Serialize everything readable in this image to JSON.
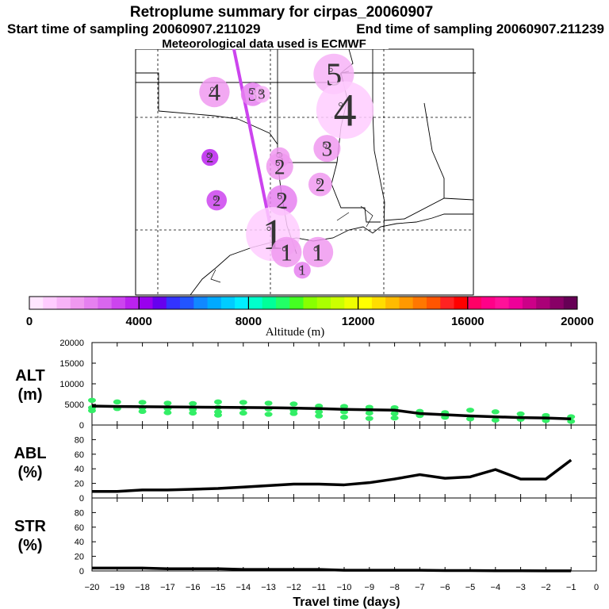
{
  "title_block": {
    "title": "Retroplume summary for cirpas_20060907",
    "start_label": "Start time of sampling 20060907.211029",
    "end_label": "End time of sampling 20060907.211239",
    "met_label": "Meteorological data used is ECMWF"
  },
  "colorbar": {
    "label": "Altitude (m)",
    "min": 0,
    "max": 20000,
    "tick_labels": [
      "0",
      "4000",
      "8000",
      "12000",
      "16000",
      "20000"
    ],
    "colors": [
      "#ffe6ff",
      "#ffccff",
      "#f7b3f7",
      "#f099f0",
      "#e680f0",
      "#d966ee",
      "#cc44ee",
      "#bb22ee",
      "#9900ee",
      "#6600ee",
      "#3333ff",
      "#2255ff",
      "#1188ff",
      "#00aaff",
      "#00ccff",
      "#00eeff",
      "#00ffcc",
      "#00ff99",
      "#22ff66",
      "#44ff22",
      "#88ff00",
      "#aaff00",
      "#ccff00",
      "#eeff00",
      "#ffff00",
      "#ffdd00",
      "#ffbb00",
      "#ff9900",
      "#ff7700",
      "#ff5500",
      "#ff2222",
      "#ff0000",
      "#ff0066",
      "#ff0088",
      "#ff1199",
      "#ee0099",
      "#cc0088",
      "#aa0077",
      "#880066",
      "#660055"
    ]
  },
  "map": {
    "trajectory_color": "#cc44ee",
    "plume_points": [
      {
        "day": "5",
        "alt": 1100,
        "lat": 36.9,
        "lon": -92.2,
        "r": 1.2
      },
      {
        "day": "4",
        "alt": 800,
        "lat": 35.3,
        "lon": -91.7,
        "r": 1.7
      },
      {
        "day": "4",
        "alt": 1900,
        "lat": 36.1,
        "lon": -97.5,
        "r": 0.9
      },
      {
        "day": "3",
        "alt": 2300,
        "lat": 36.0,
        "lon": -95.8,
        "r": 0.7
      },
      {
        "day": "3",
        "alt": 1400,
        "lat": 36.0,
        "lon": -95.4,
        "r": 0.5
      },
      {
        "day": "3",
        "alt": 1500,
        "lat": 33.6,
        "lon": -92.5,
        "r": 0.8
      },
      {
        "day": "3",
        "alt": 1900,
        "lat": 33.2,
        "lon": -94.6,
        "r": 0.6
      },
      {
        "day": "2",
        "alt": 3600,
        "lat": 33.2,
        "lon": -97.7,
        "r": 0.5
      },
      {
        "day": "2",
        "alt": 1900,
        "lat": 32.8,
        "lon": -94.6,
        "r": 0.8
      },
      {
        "day": "2",
        "alt": 1500,
        "lat": 32.0,
        "lon": -92.8,
        "r": 0.7
      },
      {
        "day": "2",
        "alt": 3400,
        "lat": 31.3,
        "lon": -97.4,
        "r": 0.6
      },
      {
        "day": "2",
        "alt": 2100,
        "lat": 31.3,
        "lon": -94.5,
        "r": 0.9
      },
      {
        "day": "1",
        "alt": 600,
        "lat": 29.8,
        "lon": -94.9,
        "r": 1.6
      },
      {
        "day": "1",
        "alt": 1500,
        "lat": 29.0,
        "lon": -94.3,
        "r": 0.9
      },
      {
        "day": "1",
        "alt": 1900,
        "lat": 29.0,
        "lon": -92.9,
        "r": 0.9
      },
      {
        "day": "1",
        "alt": 2400,
        "lat": 28.2,
        "lon": -93.6,
        "r": 0.5
      }
    ]
  },
  "chart_data": [
    {
      "type": "line",
      "name": "ALT",
      "ylabel": "ALT",
      "yunits": "(m)",
      "ylim": [
        0,
        20000
      ],
      "yticks": [
        "0",
        "5000",
        "10000",
        "15000",
        "20000"
      ],
      "xlim": [
        -20,
        0
      ],
      "x": [
        -20,
        -19,
        -18,
        -17,
        -16,
        -15,
        -14,
        -13,
        -12,
        -11,
        -10,
        -9,
        -8,
        -7,
        -6,
        -5,
        -4,
        -3,
        -2,
        -1
      ],
      "values": [
        4600,
        4500,
        4450,
        4400,
        4350,
        4300,
        4250,
        4200,
        4100,
        4000,
        3800,
        3700,
        3600,
        2800,
        2500,
        2200,
        2000,
        1800,
        1700,
        1500
      ],
      "scatter_color": "#33ee66",
      "scatter_x": [
        -20,
        -20,
        -20,
        -19,
        -19,
        -18,
        -18,
        -18,
        -17,
        -17,
        -17,
        -16,
        -16,
        -16,
        -15,
        -15,
        -15,
        -15,
        -14,
        -14,
        -14,
        -13,
        -13,
        -13,
        -12,
        -12,
        -12,
        -11,
        -11,
        -11,
        -10,
        -10,
        -10,
        -9,
        -9,
        -9,
        -8,
        -8,
        -8,
        -7,
        -7,
        -6,
        -6,
        -5,
        -5,
        -4,
        -4,
        -3,
        -3,
        -2,
        -2,
        -1,
        -1
      ],
      "scatter_y": [
        6000,
        4200,
        3500,
        5600,
        4000,
        5500,
        4200,
        3300,
        5300,
        4000,
        3000,
        5200,
        3800,
        2900,
        5600,
        4300,
        3200,
        2400,
        5500,
        4100,
        2900,
        5300,
        3900,
        2600,
        5100,
        3600,
        2800,
        4600,
        3200,
        2200,
        4500,
        3200,
        1900,
        4300,
        2900,
        1600,
        4200,
        2800,
        1700,
        3300,
        2300,
        3000,
        1900,
        3600,
        1500,
        3200,
        1200,
        2700,
        1400,
        2300,
        1100,
        2000,
        900
      ]
    },
    {
      "type": "line",
      "name": "ABL",
      "ylabel": "ABL",
      "yunits": "(%)",
      "ylim": [
        0,
        100
      ],
      "yticks": [
        "0",
        "20",
        "40",
        "60",
        "80"
      ],
      "xlim": [
        -20,
        0
      ],
      "x": [
        -20,
        -19,
        -18,
        -17,
        -16,
        -15,
        -14,
        -13,
        -12,
        -11,
        -10,
        -9,
        -8,
        -7,
        -6,
        -5,
        -4,
        -3,
        -2,
        -1
      ],
      "values": [
        9,
        9,
        11,
        11,
        12,
        13,
        15,
        17,
        19,
        19,
        18,
        21,
        26,
        32,
        27,
        29,
        39,
        26,
        26,
        52
      ]
    },
    {
      "type": "line",
      "name": "STR",
      "ylabel": "STR",
      "yunits": "(%)",
      "ylim": [
        0,
        100
      ],
      "yticks": [
        "0",
        "20",
        "40",
        "60",
        "80"
      ],
      "xlim": [
        -20,
        0
      ],
      "x": [
        -20,
        -19,
        -18,
        -17,
        -16,
        -15,
        -14,
        -13,
        -12,
        -11,
        -10,
        -9,
        -8,
        -7,
        -6,
        -5,
        -4,
        -3,
        -2,
        -1
      ],
      "values": [
        4,
        4,
        4,
        3,
        3,
        3,
        2,
        2,
        2,
        2,
        1,
        1,
        1,
        1,
        0.5,
        0.5,
        0.3,
        0.3,
        0.2,
        0.2
      ]
    }
  ],
  "x_axis": {
    "label": "Travel time (days)",
    "tick_labels": [
      "−20",
      "−19",
      "−18",
      "−17",
      "−16",
      "−15",
      "−14",
      "−13",
      "−12",
      "−11",
      "−10",
      "−9",
      "−8",
      "−7",
      "−6",
      "−5",
      "−4",
      "−3",
      "−2",
      "−1",
      "0"
    ]
  }
}
